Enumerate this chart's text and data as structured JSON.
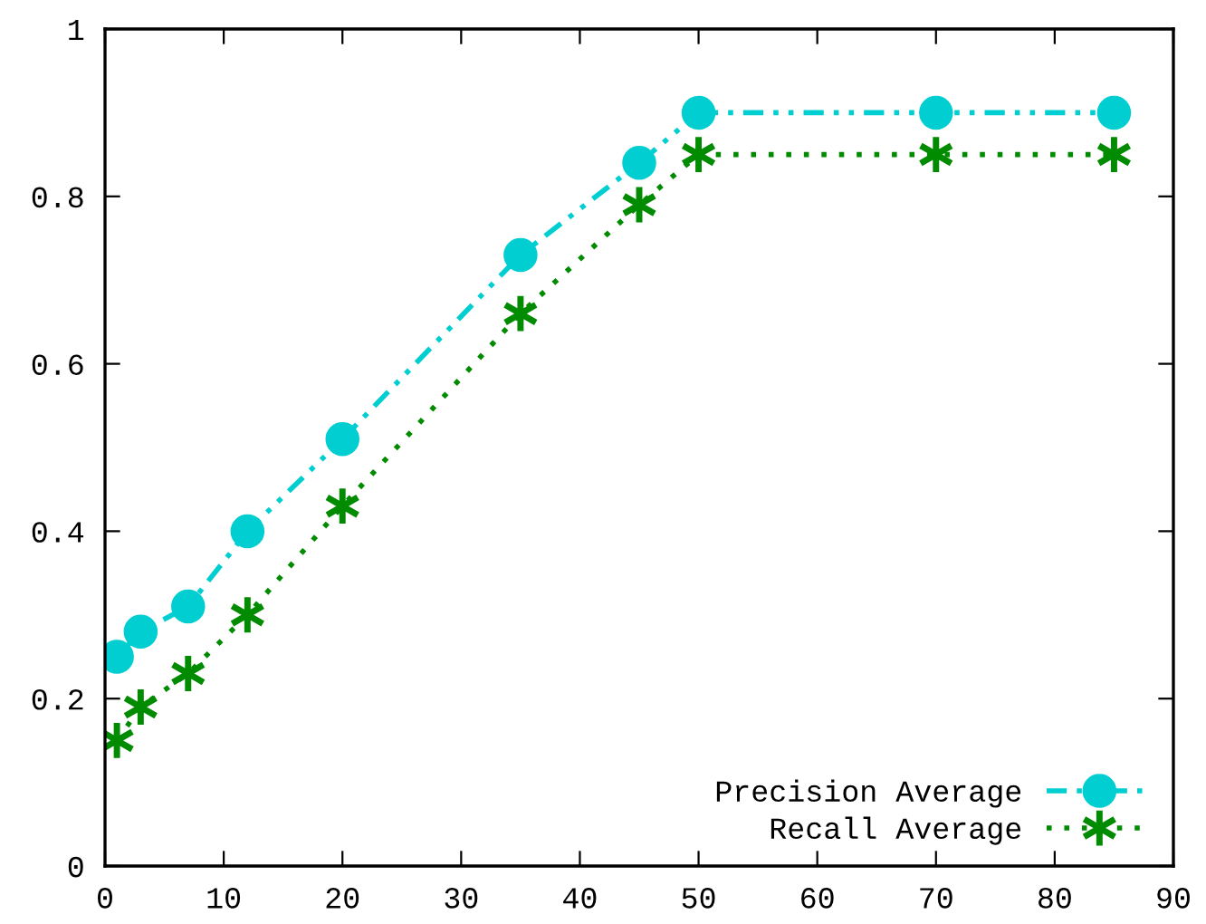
{
  "chart_data": {
    "type": "line",
    "x": [
      1,
      3,
      7,
      12,
      20,
      35,
      45,
      50,
      70,
      85
    ],
    "series": [
      {
        "name": "Precision Average",
        "color": "#00ced1",
        "marker": "circle",
        "line_style": "dashed",
        "values": [
          0.25,
          0.28,
          0.31,
          0.4,
          0.51,
          0.73,
          0.84,
          0.9,
          0.9,
          0.9
        ]
      },
      {
        "name": "Recall Average",
        "color": "#008b00",
        "marker": "cross",
        "line_style": "dotted",
        "values": [
          0.15,
          0.19,
          0.23,
          0.3,
          0.43,
          0.66,
          0.79,
          0.85,
          0.85,
          0.85
        ]
      }
    ],
    "xlim": [
      0,
      90
    ],
    "xticks": [
      0,
      10,
      20,
      30,
      40,
      50,
      60,
      70,
      80,
      90
    ],
    "ylim": [
      0,
      1
    ],
    "yticks": [
      0,
      {
        "value": 0.2,
        "label": "0.2"
      },
      {
        "value": 0.4,
        "label": "0.4"
      },
      {
        "value": 0.6,
        "label": "0.6"
      },
      {
        "value": 0.8,
        "label": "0.8"
      },
      1
    ],
    "grid": false,
    "legend": "bottom right"
  }
}
